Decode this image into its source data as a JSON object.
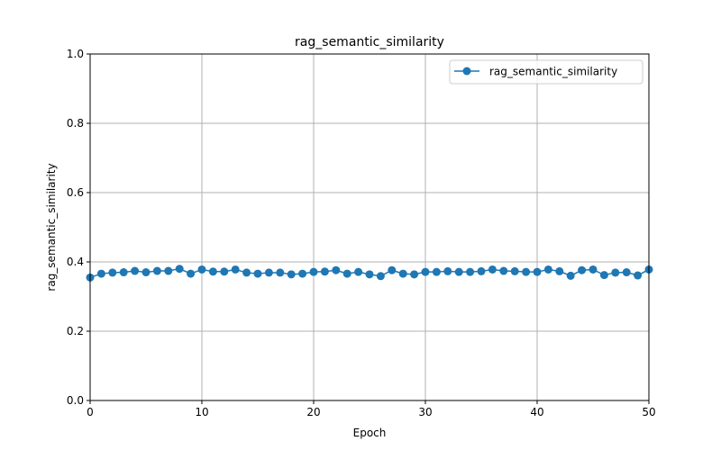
{
  "chart_data": {
    "type": "line",
    "title": "rag_semantic_similarity",
    "xlabel": "Epoch",
    "ylabel": "rag_semantic_similarity",
    "xlim": [
      0,
      50
    ],
    "ylim": [
      0.0,
      1.0
    ],
    "x_ticks": [
      "0",
      "10",
      "20",
      "30",
      "40",
      "50"
    ],
    "y_ticks": [
      "0.0",
      "0.2",
      "0.4",
      "0.6",
      "0.8",
      "1.0"
    ],
    "grid": true,
    "legend_position": "top-right",
    "colors": {
      "series": "#1f77b4",
      "grid": "#b0b0b0",
      "axes": "#000000"
    },
    "series": [
      {
        "name": "rag_semantic_similarity",
        "marker": "circle",
        "x": [
          0,
          1,
          2,
          3,
          4,
          5,
          6,
          7,
          8,
          9,
          10,
          11,
          12,
          13,
          14,
          15,
          16,
          17,
          18,
          19,
          20,
          21,
          22,
          23,
          24,
          25,
          26,
          27,
          28,
          29,
          30,
          31,
          32,
          33,
          34,
          35,
          36,
          37,
          38,
          39,
          40,
          41,
          42,
          43,
          44,
          45,
          46,
          47,
          48,
          49,
          50
        ],
        "values": [
          0.355,
          0.366,
          0.369,
          0.37,
          0.374,
          0.37,
          0.374,
          0.374,
          0.38,
          0.366,
          0.378,
          0.372,
          0.372,
          0.378,
          0.369,
          0.366,
          0.369,
          0.369,
          0.364,
          0.366,
          0.371,
          0.372,
          0.376,
          0.366,
          0.371,
          0.364,
          0.359,
          0.376,
          0.366,
          0.364,
          0.371,
          0.371,
          0.373,
          0.371,
          0.371,
          0.373,
          0.378,
          0.374,
          0.373,
          0.371,
          0.371,
          0.378,
          0.373,
          0.36,
          0.376,
          0.378,
          0.362,
          0.369,
          0.37,
          0.361,
          0.378
        ]
      }
    ]
  }
}
